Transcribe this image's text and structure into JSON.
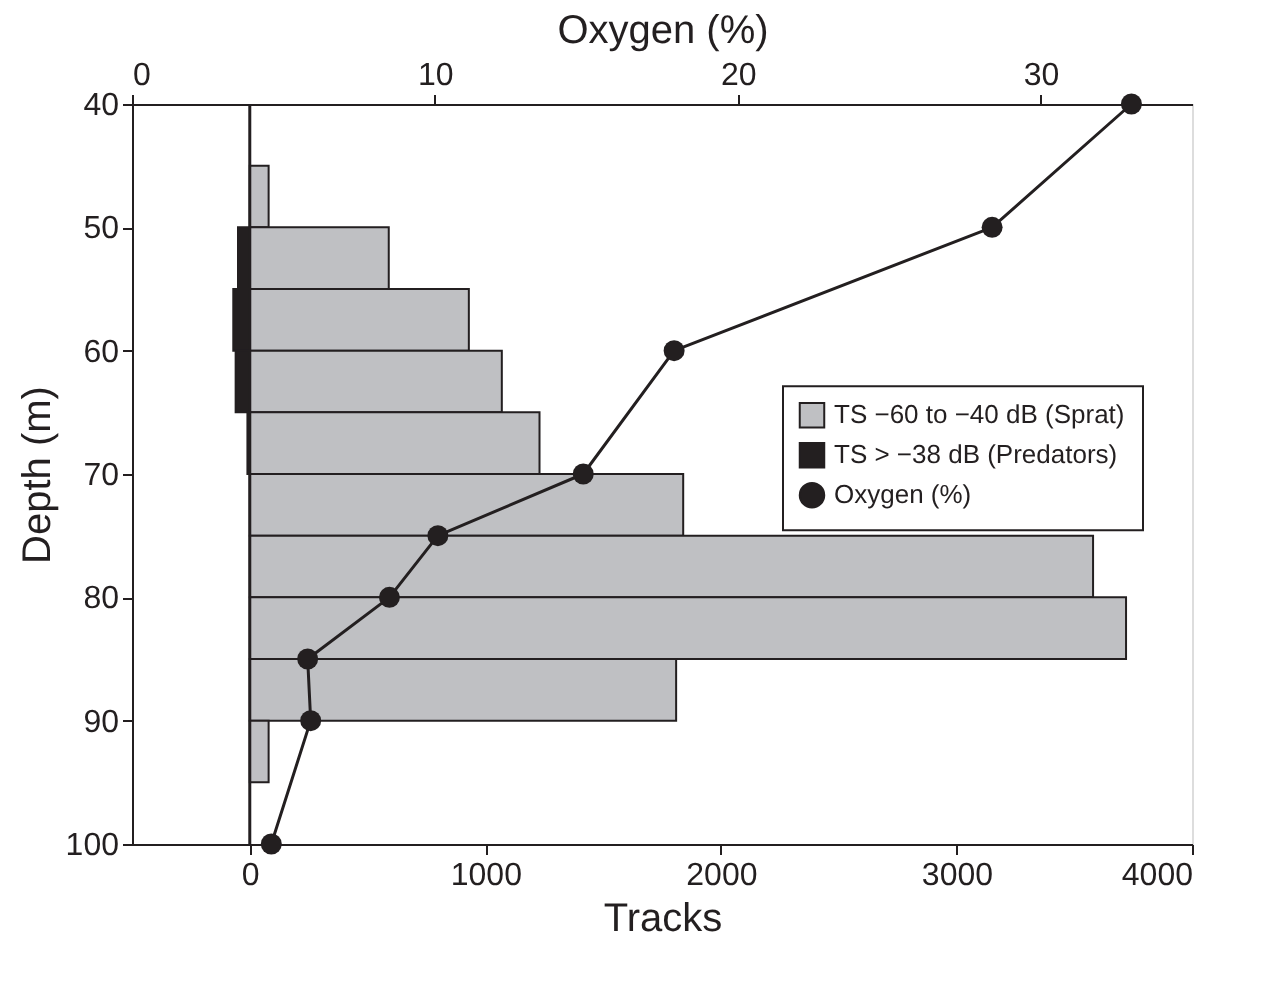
{
  "chart_data": {
    "type": "bar",
    "orientation": "horizontal",
    "xlabel": "Tracks",
    "x2label": "Oxygen (%)",
    "ylabel": "Depth (m)",
    "xlim": [
      -500,
      4000
    ],
    "xticks": [
      0,
      1000,
      2000,
      3000,
      4000
    ],
    "x2lim": [
      0,
      35
    ],
    "x2ticks": [
      0,
      10,
      20,
      30
    ],
    "ylim": [
      100,
      40
    ],
    "yticks": [
      40,
      50,
      60,
      70,
      80,
      90,
      100
    ],
    "series": [
      {
        "name": "TS −60 to −40 dB (Sprat)",
        "color": "#bfc0c3",
        "x": [
          47.5,
          52.5,
          57.5,
          62.5,
          67.5,
          72.5,
          77.5,
          82.5,
          87.5,
          92.5
        ],
        "values": [
          80,
          590,
          930,
          1070,
          1230,
          1840,
          3580,
          3720,
          1810,
          80
        ]
      },
      {
        "name": "TS > −38 dB (Predators)",
        "color": "#231f20",
        "x": [
          52.5,
          57.5,
          62.5,
          67.5
        ],
        "values": [
          -50,
          -70,
          -60,
          -10
        ]
      },
      {
        "name": "Oxygen (%)",
        "color": "#231f20",
        "type": "line",
        "axis": "x2",
        "marker": "circle",
        "x": [
          40,
          50,
          60,
          70,
          75,
          80,
          85,
          90,
          100
        ],
        "values": [
          33.0,
          28.4,
          17.9,
          14.9,
          10.1,
          8.5,
          5.8,
          5.9,
          4.6
        ]
      }
    ],
    "ref_lines": [
      {
        "axis": "x",
        "value": 0,
        "color": "#231f20"
      }
    ],
    "legend": "right",
    "grid": false
  }
}
